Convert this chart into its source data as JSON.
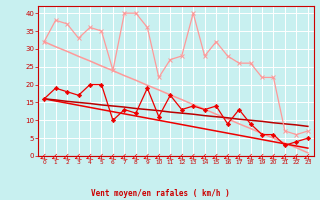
{
  "xlabel": "Vent moyen/en rafales ( km/h )",
  "background_color": "#c8f0f0",
  "grid_color": "#ffffff",
  "x_hours": [
    0,
    1,
    2,
    3,
    4,
    5,
    6,
    7,
    8,
    9,
    10,
    11,
    12,
    13,
    14,
    15,
    16,
    17,
    18,
    19,
    20,
    21,
    22,
    23
  ],
  "line_pink_rafales": [
    32,
    38,
    37,
    33,
    36,
    35,
    24,
    40,
    40,
    36,
    22,
    27,
    28,
    40,
    28,
    32,
    28,
    26,
    26,
    22,
    22,
    7,
    6,
    7
  ],
  "line_pink_trend": [
    32,
    30.6,
    29.3,
    27.9,
    26.6,
    25.2,
    23.9,
    22.5,
    21.2,
    19.8,
    18.5,
    17.1,
    15.8,
    14.4,
    13.1,
    11.7,
    10.4,
    9.0,
    7.7,
    6.3,
    5.0,
    3.6,
    2.3,
    0.9
  ],
  "line_red_mean": [
    16,
    19,
    18,
    17,
    20,
    20,
    10,
    13,
    12,
    19,
    11,
    17,
    13,
    14,
    13,
    14,
    9,
    13,
    9,
    6,
    6,
    3,
    4,
    5
  ],
  "line_red_trend1": [
    16,
    15.4,
    14.8,
    14.2,
    13.6,
    13.0,
    12.4,
    11.8,
    11.2,
    10.6,
    10.0,
    9.4,
    8.8,
    8.2,
    7.6,
    7.0,
    6.4,
    5.8,
    5.2,
    4.6,
    4.0,
    3.4,
    2.8,
    2.2
  ],
  "line_red_trend2": [
    16,
    15.7,
    15.3,
    15.0,
    14.7,
    14.3,
    14.0,
    13.7,
    13.3,
    13.0,
    12.7,
    12.3,
    12.0,
    11.7,
    11.3,
    11.0,
    10.7,
    10.3,
    10.0,
    9.7,
    9.3,
    9.0,
    8.7,
    8.3
  ],
  "ylim": [
    0,
    42
  ],
  "yticks": [
    0,
    5,
    10,
    15,
    20,
    25,
    30,
    35,
    40
  ],
  "color_pink": "#ff9999",
  "color_red": "#ee0000",
  "color_darkred": "#bb0000",
  "axis_color": "#cc0000",
  "tick_color": "#cc0000"
}
